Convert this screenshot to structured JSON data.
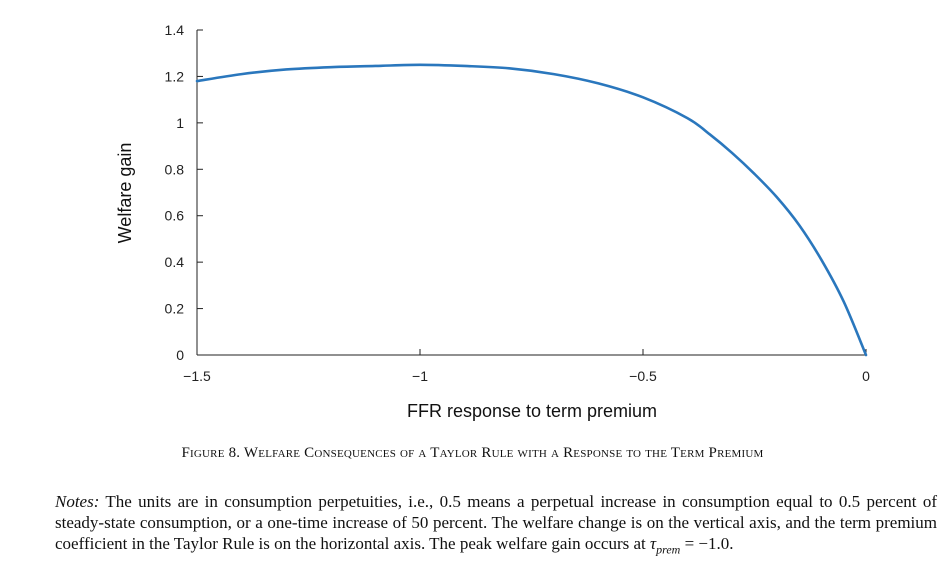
{
  "chart_data": {
    "type": "line",
    "title": "",
    "xlabel": "FFR response to term premium",
    "ylabel": "Welfare gain",
    "xlim": [
      -1.5,
      0
    ],
    "ylim": [
      0,
      1.4
    ],
    "xticks": [
      -1.5,
      -1,
      -0.5,
      0
    ],
    "xtick_labels": [
      "−1.5",
      "−1",
      "−0.5",
      "0"
    ],
    "yticks": [
      0,
      0.2,
      0.4,
      0.6,
      0.8,
      1,
      1.2,
      1.4
    ],
    "ytick_labels": [
      "0",
      "0.2",
      "0.4",
      "0.6",
      "0.8",
      "1",
      "1.2",
      "1.4"
    ],
    "grid": false,
    "color": "#2a77bd",
    "series": [
      {
        "x": [
          -1.5,
          -1.4,
          -1.3,
          -1.2,
          -1.1,
          -1.0,
          -0.9,
          -0.8,
          -0.7,
          -0.6,
          -0.5,
          -0.4,
          -0.35,
          -0.3,
          -0.25,
          -0.2,
          -0.15,
          -0.1,
          -0.05,
          0.0
        ],
        "values": [
          1.18,
          1.21,
          1.23,
          1.24,
          1.245,
          1.25,
          1.245,
          1.235,
          1.21,
          1.17,
          1.11,
          1.02,
          0.95,
          0.87,
          0.78,
          0.68,
          0.56,
          0.41,
          0.23,
          0.0
        ]
      }
    ]
  },
  "caption": {
    "prefix": "Figure 8. ",
    "text": "Welfare Consequences of a Taylor Rule with a Response to the Term Premium"
  },
  "notes": {
    "lead": "Notes:",
    "body": " The units are in consumption perpetuities, i.e., 0.5 means a perpetual increase in consumption equal to 0.5 percent of steady-state consumption, or a one-time increase of 50 percent. The welfare change is on the vertical axis, and the term premium coefficient in the Taylor Rule is on the horizontal axis. The peak welfare gain occurs at ",
    "symbol": "τ",
    "subscript": "prem",
    "tail": " = −1.0."
  }
}
